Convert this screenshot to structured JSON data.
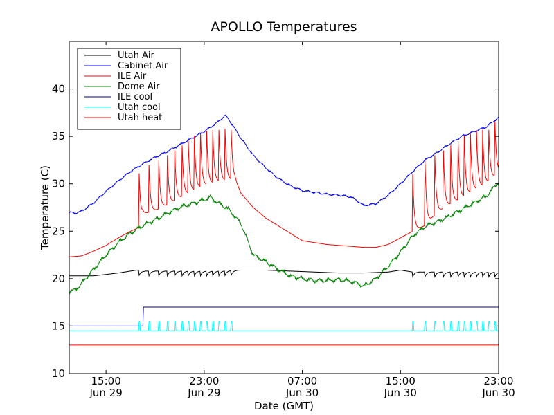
{
  "chart_data": {
    "type": "line",
    "title": "APOLLO Temperatures",
    "xlabel": "Date (GMT)",
    "ylabel": "Temperature (C)",
    "xlim_hours": [
      0,
      35
    ],
    "ylim": [
      10,
      45
    ],
    "yticks": [
      10,
      15,
      20,
      25,
      30,
      35,
      40
    ],
    "xticks": [
      {
        "hour": 3,
        "time": "15:00",
        "date": "Jun 29"
      },
      {
        "hour": 11,
        "time": "23:00",
        "date": "Jun 29"
      },
      {
        "hour": 19,
        "time": "07:00",
        "date": "Jun 30"
      },
      {
        "hour": 27,
        "time": "15:00",
        "date": "Jun 30"
      },
      {
        "hour": 35,
        "time": "23:00",
        "date": "Jun 30"
      }
    ],
    "x_origin": "Jun 29 12:00 GMT",
    "legend_position": "upper-left",
    "grid": false,
    "series": [
      {
        "name": "Utah Air",
        "color": "#000000",
        "x": [
          0,
          2,
          4,
          5.5,
          6,
          8,
          10,
          12,
          14,
          16,
          18,
          20,
          22,
          24,
          26,
          27,
          28,
          30,
          32,
          34,
          35
        ],
        "y": [
          20.3,
          20.3,
          20.6,
          20.9,
          20.8,
          20.8,
          20.8,
          20.8,
          20.9,
          20.9,
          20.8,
          20.7,
          20.6,
          20.6,
          20.7,
          20.9,
          20.7,
          20.7,
          20.7,
          20.7,
          20.7
        ]
      },
      {
        "name": "Cabinet Air",
        "color": "#0000ff",
        "x": [
          0,
          0.5,
          1,
          2,
          3,
          4,
          5,
          6,
          7,
          8,
          9,
          10,
          11,
          12,
          12.7,
          13,
          14,
          15,
          16,
          17,
          18,
          19,
          20,
          21,
          22,
          23,
          23.5,
          24,
          25,
          26,
          27,
          28,
          29,
          30,
          31,
          32,
          33,
          34,
          35
        ],
        "y": [
          27.0,
          26.9,
          27.1,
          28.0,
          29.2,
          30.3,
          31.3,
          32.1,
          32.8,
          33.4,
          34.1,
          34.8,
          35.5,
          36.4,
          37.2,
          36.8,
          34.8,
          33.0,
          31.7,
          30.6,
          29.8,
          29.3,
          29.1,
          28.9,
          28.8,
          28.6,
          28.2,
          27.7,
          27.9,
          28.8,
          30.0,
          31.3,
          32.5,
          33.3,
          34.2,
          35.0,
          35.5,
          36.0,
          37.0
        ]
      },
      {
        "name": "ILE Air",
        "color": "#ff0000",
        "x": [
          0,
          1,
          2,
          3,
          4,
          5,
          5.7,
          6,
          7,
          8,
          9,
          10,
          11,
          12,
          13.5,
          14,
          15,
          16,
          17,
          18,
          19,
          20,
          21,
          22,
          23,
          24,
          25,
          26,
          27,
          28,
          29,
          30,
          31,
          32,
          33,
          34,
          35
        ],
        "y": [
          22.3,
          22.4,
          22.9,
          23.5,
          24.3,
          25.0,
          25.4,
          26.8,
          27.2,
          27.8,
          28.5,
          29.2,
          29.8,
          30.2,
          30.5,
          29.0,
          27.5,
          26.4,
          25.6,
          24.8,
          24.0,
          23.8,
          23.6,
          23.5,
          23.4,
          23.3,
          23.3,
          23.6,
          24.3,
          25.0,
          25.6,
          27.0,
          27.8,
          28.5,
          29.3,
          30.0,
          31.2
        ]
      },
      {
        "name": "Dome Air",
        "color": "#008000",
        "x": [
          0,
          0.5,
          1,
          2,
          3,
          4,
          5,
          6,
          7,
          8,
          9,
          10,
          11,
          11.5,
          12,
          13,
          14,
          15,
          16,
          17,
          18,
          19,
          20,
          21,
          22,
          23,
          23.5,
          24,
          25,
          26,
          27,
          28,
          29,
          30,
          31,
          32,
          33,
          34,
          35
        ],
        "y": [
          18.7,
          18.8,
          19.5,
          21.0,
          22.5,
          23.8,
          24.8,
          25.6,
          26.2,
          26.9,
          27.5,
          27.9,
          28.3,
          28.6,
          28.1,
          27.3,
          25.8,
          22.5,
          21.8,
          21.0,
          20.3,
          20.0,
          19.8,
          19.8,
          19.9,
          19.7,
          19.5,
          19.2,
          20.0,
          21.3,
          22.8,
          24.5,
          25.5,
          26.0,
          26.6,
          27.3,
          28.0,
          28.7,
          30.2
        ]
      },
      {
        "name": "ILE cool",
        "color": "#000080",
        "x": [
          0,
          6,
          6.05,
          35
        ],
        "y": [
          15.0,
          15.0,
          17.0,
          17.0
        ]
      },
      {
        "name": "Utah cool",
        "color": "#00ffff",
        "x": [
          0,
          35
        ],
        "y": [
          14.5,
          14.5
        ]
      },
      {
        "name": "Utah heat",
        "color": "#ff0000",
        "x": [
          0,
          35
        ],
        "y": [
          13.0,
          13.0
        ]
      }
    ],
    "cycle_events_hours": [
      5.7,
      6.5,
      7.3,
      8.0,
      8.6,
      9.2,
      9.7,
      10.2,
      10.7,
      11.2,
      11.7,
      12.2,
      12.7,
      13.2,
      28.0,
      29.0,
      29.8,
      30.5,
      31.1,
      31.7,
      32.2,
      32.7,
      33.2,
      33.7,
      34.2,
      34.7
    ],
    "ile_air_spike_peaks": [
      31.1,
      32.0,
      32.5,
      33.0,
      33.5,
      34.0,
      34.5,
      35.0,
      35.3,
      35.5,
      35.6,
      35.6,
      35.7,
      35.6,
      31.0,
      32.5,
      33.0,
      33.5,
      34.0,
      34.5,
      35.0,
      35.3,
      35.5,
      35.6,
      35.6,
      36.5
    ],
    "utah_cool_pulse_value": 15.5,
    "utah_air_dip_depth": 0.5
  }
}
